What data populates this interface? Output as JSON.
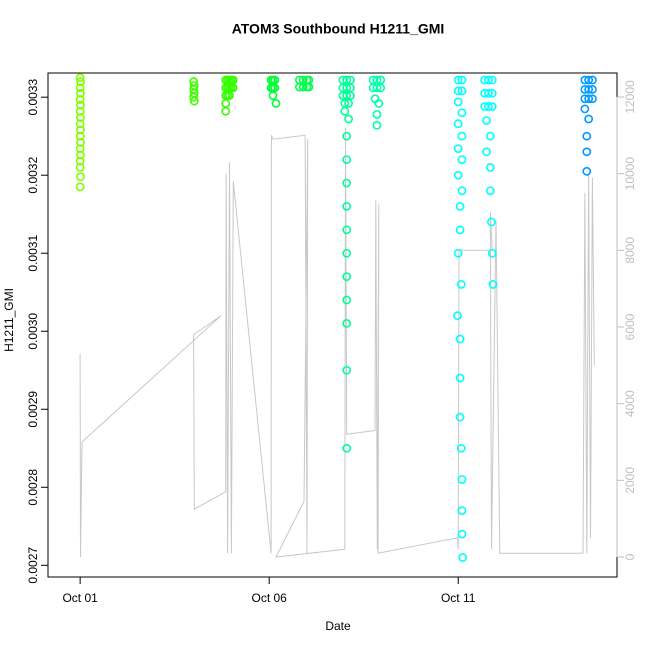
{
  "chart_data": {
    "type": "scatter",
    "title": "ATOM3 Southbound H1211_GMI",
    "x_label": "Date",
    "y_label": "H1211_GMI",
    "xlim": [
      0.15,
      15.2
    ],
    "xticks": [
      {
        "value": 1,
        "label": "Oct 01"
      },
      {
        "value": 6,
        "label": "Oct 06"
      },
      {
        "value": 11,
        "label": "Oct 11"
      }
    ],
    "ylim": [
      0.002685,
      0.003331
    ],
    "yticks": [
      0.0027,
      0.0028,
      0.0029,
      {
        "value": 0.003,
        "label": "0.0030"
      },
      0.0031,
      0.0032,
      0.0033
    ],
    "y2lim": [
      -522,
      12626
    ],
    "y2ticks": [
      0,
      2000,
      4000,
      6000,
      8000,
      10000,
      12000
    ],
    "y2_color": "#bebebe",
    "series": [
      {
        "type": "line",
        "axis": "y2",
        "color": "#c8c8c8",
        "x": [
          1.0,
          1.01,
          1.05,
          4.73,
          4.0,
          4.02,
          4.85,
          4.86,
          4.9,
          4.95,
          5.0,
          5.05,
          6.05,
          6.06,
          6.1,
          6.95,
          7.0,
          7.02,
          6.92,
          6.18,
          8.0,
          8.02,
          8.05,
          8.8,
          8.82,
          8.86,
          8.9,
          8.88,
          10.98,
          11.0,
          11.02,
          11.9,
          11.85,
          11.88,
          12.0,
          12.1,
          14.3,
          14.35,
          14.4,
          14.45,
          14.5,
          14.55,
          14.6
        ],
        "values": [
          5300,
          0,
          3000,
          6300,
          5800,
          1250,
          1700,
          10000,
          100,
          10300,
          100,
          9800,
          100,
          11000,
          10900,
          11000,
          100,
          10900,
          1450,
          0,
          200,
          11200,
          3200,
          3300,
          9300,
          200,
          9200,
          100,
          500,
          200,
          8000,
          8000,
          9000,
          200,
          8800,
          100,
          100,
          9500,
          100,
          10000,
          500,
          9900,
          5000
        ]
      },
      {
        "color": "#80ff00",
        "x": [
          1.0,
          1.01,
          1.0,
          1.01,
          1.0,
          1.01,
          1.0,
          1.01,
          1.0,
          1.01,
          1.0,
          1.01,
          1.0,
          1.01,
          1.0,
          1.0,
          1.01,
          1.0
        ],
        "values": [
          0.003325,
          0.00332,
          0.003312,
          0.003305,
          0.003297,
          0.00329,
          0.003282,
          0.003274,
          0.003266,
          0.003258,
          0.00325,
          0.003242,
          0.003234,
          0.003226,
          0.003218,
          0.00321,
          0.003198,
          0.003185
        ]
      },
      {
        "color": "#40ff00",
        "x": [
          4.0,
          4.02,
          4.0,
          4.02,
          4.0,
          4.02
        ],
        "values": [
          0.00332,
          0.003315,
          0.00331,
          0.003305,
          0.0033,
          0.003295
        ]
      },
      {
        "color": "#33ff00",
        "x": [
          4.85,
          4.9,
          4.95,
          5.0,
          5.05,
          4.85,
          4.9,
          4.95,
          5.0,
          5.05,
          4.85,
          4.9,
          4.95,
          4.85,
          4.85
        ],
        "values": [
          0.003322,
          0.003322,
          0.003322,
          0.003322,
          0.003322,
          0.003312,
          0.003312,
          0.003312,
          0.003312,
          0.003312,
          0.003302,
          0.003302,
          0.003302,
          0.003292,
          0.003282
        ]
      },
      {
        "color": "#00ff33",
        "x": [
          6.05,
          6.1,
          6.15,
          6.05,
          6.1,
          6.15,
          6.1,
          6.18
        ],
        "values": [
          0.003322,
          0.003322,
          0.003322,
          0.003312,
          0.003312,
          0.003312,
          0.003302,
          0.003292
        ]
      },
      {
        "color": "#00ff4d",
        "x": [
          6.8,
          6.9,
          7.0,
          7.05,
          6.8,
          6.9,
          7.0,
          7.05
        ],
        "values": [
          0.003322,
          0.003322,
          0.003322,
          0.003322,
          0.003313,
          0.003313,
          0.003313,
          0.003313
        ]
      },
      {
        "color": "#00ff99",
        "x": [
          7.95,
          8.05,
          8.15,
          7.95,
          8.05,
          8.15,
          7.95,
          8.05,
          8.15,
          8.0,
          8.1,
          8.0,
          8.1,
          8.05,
          8.05,
          8.05,
          8.05,
          8.05,
          8.05,
          8.05,
          8.05,
          8.05,
          8.05,
          8.05
        ],
        "values": [
          0.003322,
          0.003322,
          0.003322,
          0.003312,
          0.003312,
          0.003312,
          0.003302,
          0.003302,
          0.003302,
          0.003292,
          0.003292,
          0.003282,
          0.003272,
          0.00325,
          0.00322,
          0.00319,
          0.00316,
          0.00313,
          0.0031,
          0.00307,
          0.00304,
          0.00301,
          0.00295,
          0.00285
        ]
      },
      {
        "color": "#00ffaa",
        "x": [
          8.75,
          8.85,
          8.95,
          8.75,
          8.85,
          8.95,
          8.8,
          8.9,
          8.85,
          8.85
        ],
        "values": [
          0.003322,
          0.003322,
          0.003322,
          0.003312,
          0.003312,
          0.003312,
          0.003298,
          0.003292,
          0.003278,
          0.003264
        ]
      },
      {
        "color": "#00ffff",
        "x": [
          11.0,
          11.1,
          11.0,
          11.1,
          11.0,
          11.1,
          11.0,
          11.1,
          11.0,
          11.1,
          11.0,
          11.1,
          11.05,
          10.98,
          11.05,
          11.0,
          11.08,
          11.05,
          11.05,
          11.05,
          11.08,
          11.1,
          11.1,
          11.1,
          11.12
        ],
        "values": [
          0.003322,
          0.003322,
          0.003308,
          0.003308,
          0.003294,
          0.00328,
          0.003266,
          0.00325,
          0.003234,
          0.00322,
          0.0032,
          0.00318,
          0.00316,
          0.00302,
          0.00313,
          0.0031,
          0.00306,
          0.00299,
          0.00294,
          0.00289,
          0.00285,
          0.00281,
          0.00277,
          0.00274,
          0.00271
        ]
      },
      {
        "color": "#00ffff",
        "x": [
          11.7,
          11.8,
          11.9,
          11.7,
          11.8,
          11.9,
          11.7,
          11.8,
          11.9,
          11.75,
          11.85,
          11.75,
          11.85,
          11.85,
          11.88,
          11.9,
          11.92
        ],
        "values": [
          0.003322,
          0.003322,
          0.003322,
          0.003305,
          0.003305,
          0.003305,
          0.003288,
          0.003288,
          0.003288,
          0.00327,
          0.00325,
          0.00323,
          0.00321,
          0.00318,
          0.00314,
          0.0031,
          0.00306
        ]
      },
      {
        "color": "#0099ff",
        "x": [
          14.35,
          14.45,
          14.55,
          14.35,
          14.45,
          14.55,
          14.35,
          14.45,
          14.55,
          14.35,
          14.45,
          14.4,
          14.4,
          14.4
        ],
        "values": [
          0.003322,
          0.003322,
          0.003322,
          0.00331,
          0.00331,
          0.00331,
          0.003298,
          0.003298,
          0.003298,
          0.003285,
          0.003272,
          0.00325,
          0.00323,
          0.003205
        ]
      }
    ]
  }
}
